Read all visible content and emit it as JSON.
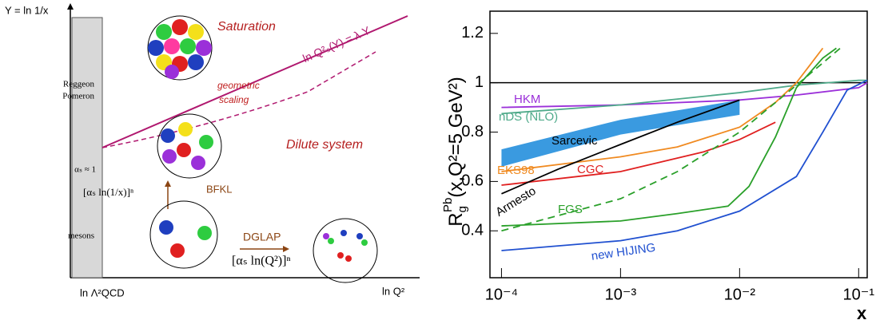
{
  "diagram": {
    "y_axis_label": "Y = ln 1/x",
    "x_axis_label": "ln Q²",
    "x_origin_label": "ln Λ²QCD",
    "bar_labels": [
      "Reggeon",
      "Pomeron",
      "αₛ ≈ 1",
      "mesons"
    ],
    "saturation": "Saturation",
    "saturation_line": "ln Q²ₛ(Y) = λ Y",
    "geometric_scaling": [
      "geometric",
      "scaling"
    ],
    "dilute": "Dilute system",
    "bfkl": "BFKL",
    "bfkl_formula": "[αₛ ln(1/x)]ⁿ",
    "dglap": "DGLAP",
    "dglap_formula": "[αₛ ln(Q²)]ⁿ"
  },
  "chart_data": {
    "type": "line",
    "xlabel": "x",
    "ylabel": {
      "main": "R",
      "sub": "g",
      "sup": "Pb",
      "rest": "(x,Q²=5 GeV²)"
    },
    "log_x": true,
    "xlim": [
      8e-05,
      0.118
    ],
    "ylim": [
      0.21,
      1.29
    ],
    "xticks": [
      {
        "value": 0.0001,
        "label": "10⁻⁴"
      },
      {
        "value": 0.001,
        "label": "10⁻³"
      },
      {
        "value": 0.01,
        "label": "10⁻²"
      },
      {
        "value": 0.1,
        "label": "10⁻¹"
      }
    ],
    "yticks": [
      0.4,
      0.6,
      0.8,
      1,
      1.2
    ],
    "hline": 1,
    "series": [
      {
        "name": "HKM",
        "color": "#9b30d9",
        "x": [
          0.0001,
          0.001,
          0.01,
          0.03,
          0.1,
          0.118
        ],
        "values": [
          0.9,
          0.91,
          0.93,
          0.95,
          0.98,
          1.0
        ]
      },
      {
        "name": "nDS (NLO)",
        "color": "#4faa8a",
        "x": [
          0.0001,
          0.001,
          0.01,
          0.03,
          0.1,
          0.118
        ],
        "values": [
          0.875,
          0.91,
          0.96,
          0.99,
          1.01,
          1.01
        ]
      },
      {
        "name": "Sarcevic",
        "color": "#3a9ae0",
        "band": true,
        "x": [
          0.0001,
          0.001,
          0.01
        ],
        "values": [
          0.66,
          0.79,
          0.87
        ],
        "upper": [
          0.73,
          0.85,
          0.93
        ]
      },
      {
        "name": "EKS98",
        "color": "#f08a20",
        "x": [
          0.0001,
          0.001,
          0.003,
          0.01,
          0.02,
          0.03,
          0.05
        ],
        "values": [
          0.64,
          0.7,
          0.74,
          0.82,
          0.92,
          1.0,
          1.14
        ]
      },
      {
        "name": "CGC",
        "color": "#e02020",
        "x": [
          0.0001,
          0.001,
          0.005,
          0.01,
          0.02
        ],
        "values": [
          0.585,
          0.64,
          0.72,
          0.77,
          0.84
        ]
      },
      {
        "name": "Armesto",
        "color": "#000000",
        "x": [
          0.0001,
          0.0003,
          0.001,
          0.003,
          0.01
        ],
        "values": [
          0.55,
          0.65,
          0.75,
          0.84,
          0.93
        ]
      },
      {
        "name": "FGS",
        "color": "#2aa02a",
        "x": [
          0.0001,
          0.001,
          0.003,
          0.008,
          0.012,
          0.02,
          0.03,
          0.05,
          0.065
        ],
        "values": [
          0.42,
          0.44,
          0.47,
          0.5,
          0.58,
          0.78,
          0.98,
          1.1,
          1.14
        ]
      },
      {
        "color": "#2aa02a",
        "dashed": true,
        "x": [
          0.0001,
          0.001,
          0.003,
          0.01,
          0.03,
          0.07
        ],
        "values": [
          0.4,
          0.53,
          0.64,
          0.8,
          0.99,
          1.14
        ]
      },
      {
        "name": "new HIJING",
        "color": "#2050d0",
        "x": [
          0.0001,
          0.001,
          0.003,
          0.01,
          0.03,
          0.05,
          0.08,
          0.118
        ],
        "values": [
          0.32,
          0.36,
          0.4,
          0.48,
          0.62,
          0.8,
          0.97,
          1.01
        ]
      }
    ]
  }
}
